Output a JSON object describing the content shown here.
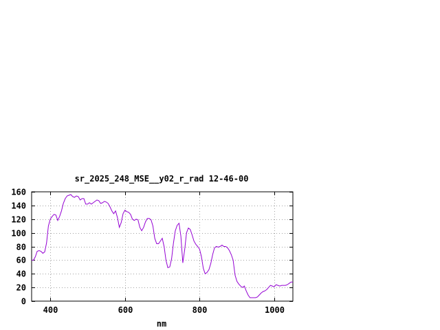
{
  "chart_data": {
    "type": "line",
    "title": "sr_2025_248_MSE__y02_r_rad 12-46-00",
    "xlabel": "nm",
    "ylabel": "",
    "xlim": [
      350,
      1050
    ],
    "ylim": [
      0,
      160
    ],
    "x_ticks": [
      400,
      600,
      800,
      1000
    ],
    "y_ticks": [
      0,
      20,
      40,
      60,
      80,
      100,
      120,
      140,
      160
    ],
    "grid": true,
    "legend": "none",
    "line_color": "#9400d3",
    "series": [
      {
        "x": [
          350,
          355,
          360,
          365,
          370,
          375,
          380,
          385,
          390,
          395,
          400,
          405,
          410,
          415,
          420,
          425,
          430,
          435,
          440,
          445,
          450,
          455,
          460,
          465,
          470,
          475,
          480,
          485,
          490,
          495,
          500,
          505,
          510,
          515,
          520,
          525,
          530,
          535,
          540,
          545,
          550,
          555,
          560,
          565,
          570,
          575,
          580,
          585,
          590,
          595,
          600,
          605,
          610,
          615,
          620,
          625,
          630,
          635,
          640,
          645,
          650,
          655,
          660,
          665,
          670,
          675,
          680,
          685,
          690,
          695,
          700,
          705,
          710,
          715,
          720,
          725,
          730,
          735,
          740,
          745,
          750,
          755,
          760,
          765,
          770,
          775,
          780,
          785,
          790,
          795,
          800,
          805,
          810,
          815,
          820,
          825,
          830,
          835,
          840,
          845,
          850,
          855,
          860,
          865,
          870,
          875,
          880,
          885,
          890,
          895,
          900,
          905,
          910,
          915,
          920,
          925,
          930,
          935,
          940,
          945,
          950,
          955,
          960,
          965,
          970,
          975,
          980,
          985,
          990,
          995,
          1000,
          1005,
          1010,
          1015,
          1020,
          1025,
          1030,
          1035,
          1040,
          1045,
          1050
        ],
        "y": [
          60,
          60,
          65,
          73,
          74,
          73,
          70,
          72,
          85,
          110,
          120,
          124,
          127,
          126,
          118,
          124,
          132,
          143,
          150,
          154,
          155,
          156,
          153,
          152,
          154,
          153,
          148,
          150,
          150,
          142,
          142,
          144,
          142,
          144,
          146,
          148,
          147,
          143,
          144,
          146,
          145,
          143,
          138,
          132,
          128,
          132,
          122,
          108,
          115,
          128,
          133,
          131,
          130,
          127,
          120,
          118,
          120,
          119,
          108,
          103,
          108,
          116,
          121,
          121,
          119,
          110,
          92,
          84,
          84,
          88,
          92,
          80,
          60,
          49,
          50,
          62,
          85,
          103,
          111,
          114,
          95,
          56,
          75,
          100,
          107,
          105,
          97,
          88,
          83,
          80,
          76,
          65,
          48,
          40,
          42,
          46,
          55,
          68,
          78,
          80,
          79,
          80,
          82,
          80,
          80,
          78,
          74,
          68,
          60,
          38,
          29,
          25,
          22,
          20,
          22,
          15,
          9,
          5,
          5,
          5,
          5,
          6,
          9,
          12,
          14,
          15,
          17,
          20,
          23,
          22,
          21,
          24,
          23,
          22,
          23,
          23,
          23,
          24,
          26,
          28,
          28
        ]
      }
    ]
  }
}
